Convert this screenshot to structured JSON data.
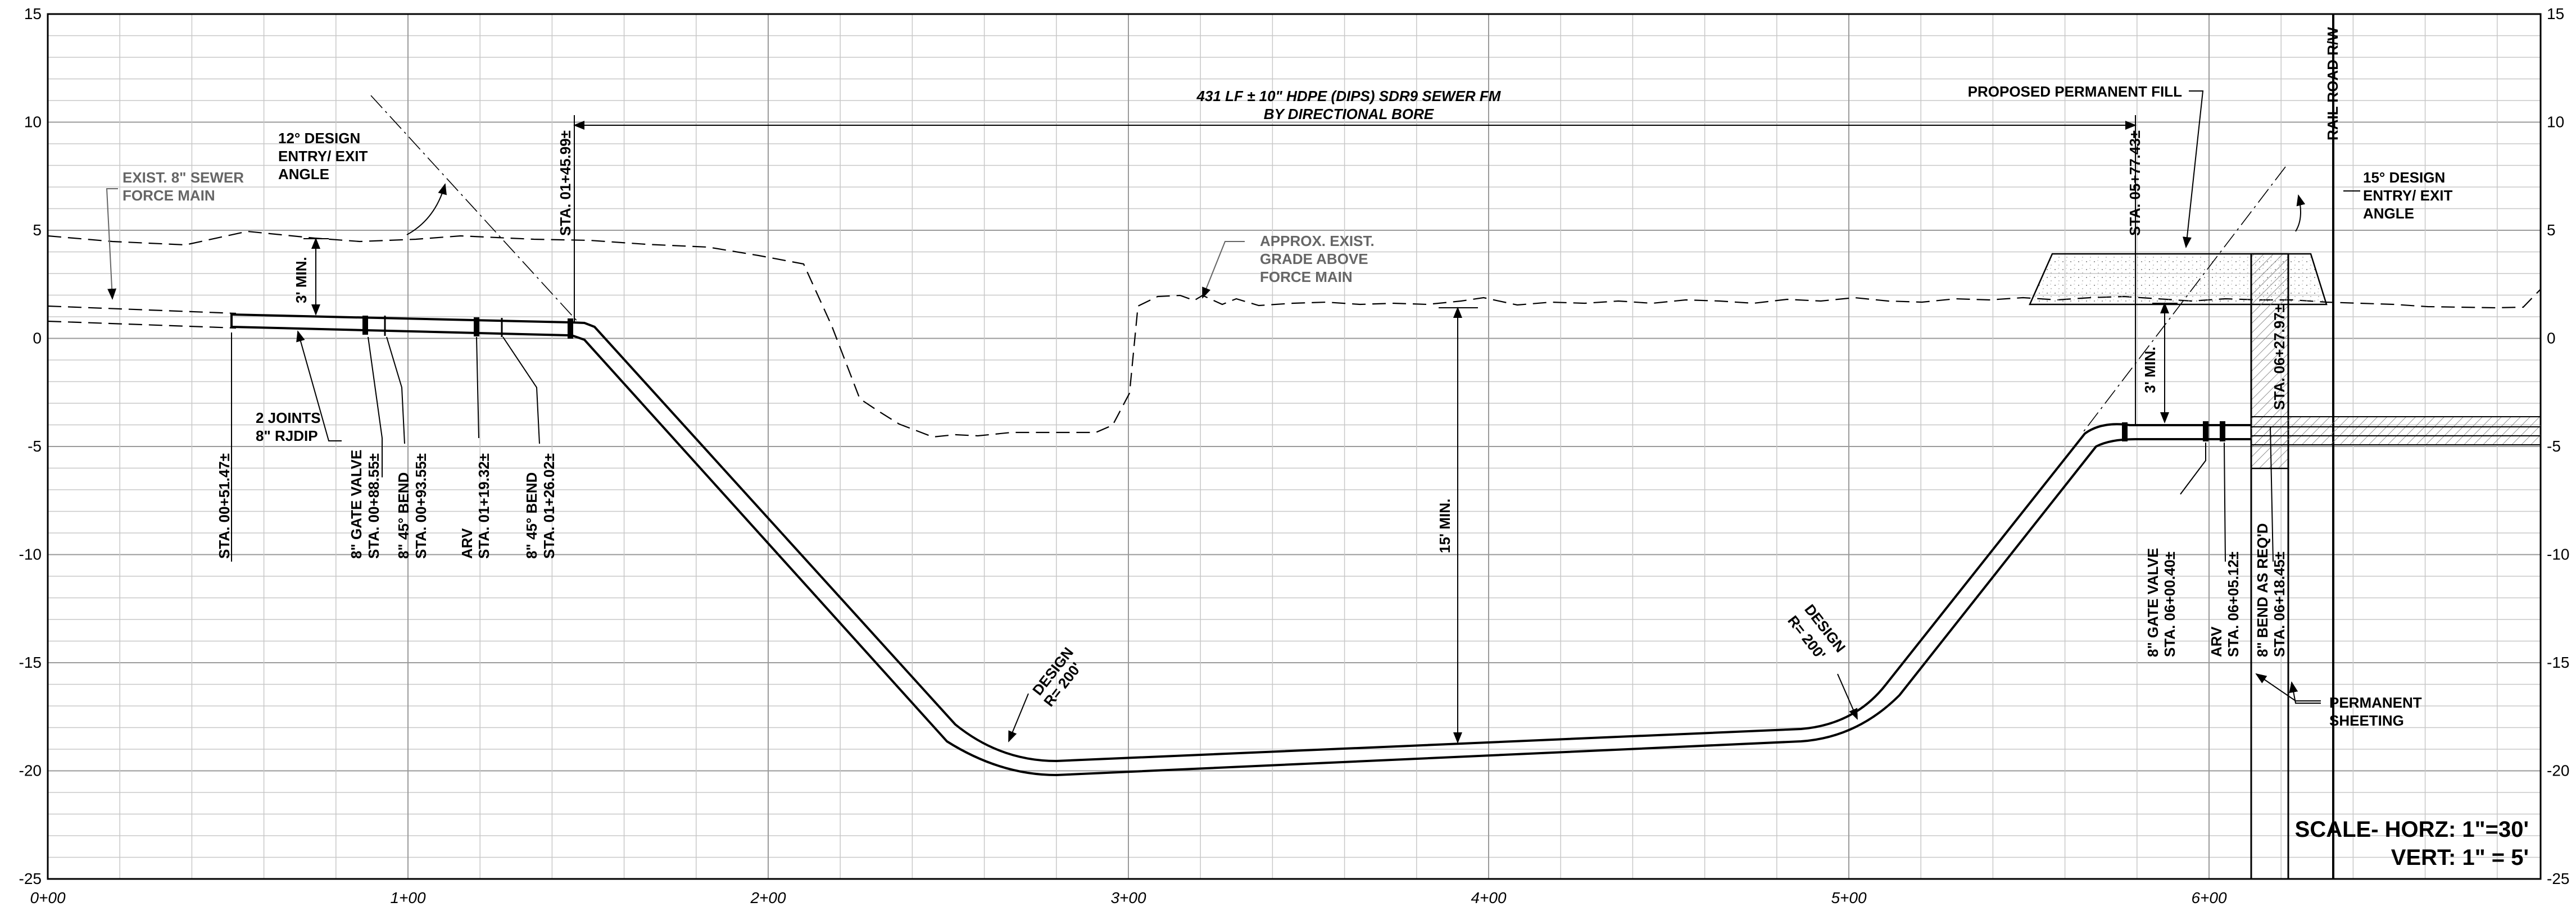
{
  "drawing": {
    "elevation_ticks": [
      "15",
      "10",
      "5",
      "0",
      "-5",
      "-10",
      "-15",
      "-20",
      "-25"
    ],
    "station_ticks": [
      "0+00",
      "1+00",
      "2+00",
      "3+00",
      "4+00",
      "5+00",
      "6+00"
    ],
    "bore_note": {
      "line1": "431 LF ± 10\" HDPE (DIPS) SDR9 SEWER FM",
      "line2": "BY DIRECTIONAL BORE"
    },
    "proposed_fill": "PROPOSED PERMANENT FILL",
    "rail_row": "RAIL ROAD R/W",
    "exist_force_main": {
      "line1": "EXIST. 8\" SEWER",
      "line2": "FORCE MAIN"
    },
    "approx_grade": {
      "line1": "APPROX. EXIST.",
      "line2": "GRADE ABOVE",
      "line3": "FORCE MAIN"
    },
    "design_angle_12": {
      "line1": "12° DESIGN",
      "line2": "ENTRY/ EXIT",
      "line3": "ANGLE"
    },
    "design_angle_15": {
      "line1": "15° DESIGN",
      "line2": "ENTRY/ EXIT",
      "line3": "ANGLE"
    },
    "min_cover_left": "3' MIN.",
    "min_cover_right": "3' MIN.",
    "min_depth": "15' MIN.",
    "design_radius_left": {
      "line1": "DESIGN",
      "line2": "R= 200'"
    },
    "design_radius_right": {
      "line1": "DESIGN",
      "line2": "R= 200'"
    },
    "joints": {
      "line1": "2 JOINTS",
      "line2": "8\" RJDIP"
    },
    "permanent_sheeting": {
      "line1": "PERMANENT",
      "line2": "SHEETING"
    },
    "scale": {
      "line1": "SCALE- HORZ: 1\"=30'",
      "line2": "VERT: 1\" = 5'"
    },
    "station_labels": {
      "sta_00_51": "STA. 00+51.47±",
      "gate_valve_left_title": "8\" GATE VALVE",
      "gate_valve_left_sta": "STA. 00+88.55±",
      "bend_left_title": "8\" 45° BEND",
      "bend_left_sta": "STA. 00+93.55±",
      "arv_left_title": "ARV",
      "arv_left_sta": "STA. 01+19.32±",
      "bend_left2_title": "8\" 45° BEND",
      "bend_left2_sta": "STA. 01+26.02±",
      "sta_01_45": "STA. 01+45.99±",
      "sta_05_77": "STA. 05+77.43±",
      "gate_valve_right_title": "8\" GATE VALVE",
      "gate_valve_right_sta": "STA. 06+00.40±",
      "arv_right_title": "ARV",
      "arv_right_sta": "STA. 06+05.12±",
      "bend_right_title": "8\" BEND AS REQ'D",
      "bend_right_sta": "STA. 06+18.45±",
      "sta_06_27": "STA. 06+27.97±"
    }
  }
}
